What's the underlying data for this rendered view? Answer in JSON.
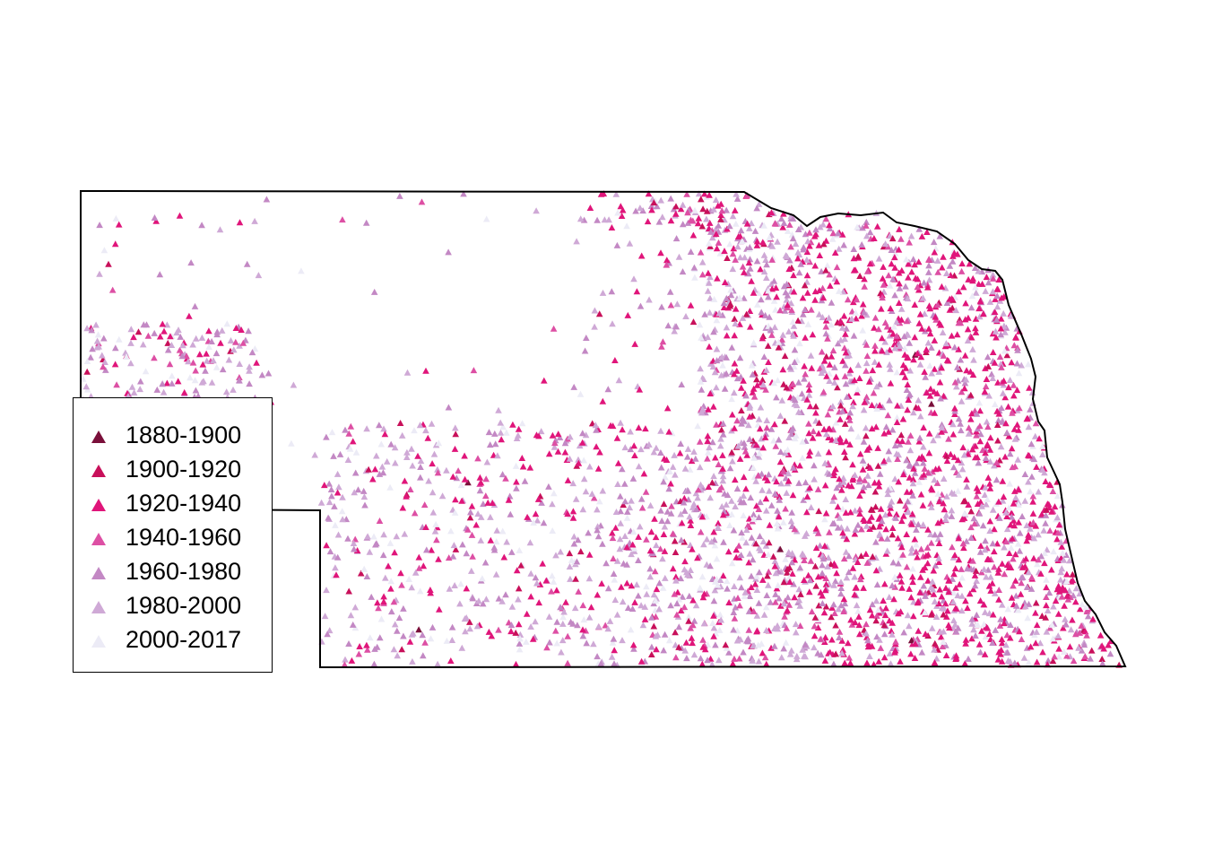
{
  "legend": {
    "items": [
      {
        "label": "1880-1900",
        "color": "#7a0f3a"
      },
      {
        "label": "1900-1920",
        "color": "#c8105a"
      },
      {
        "label": "1920-1940",
        "color": "#e0157a"
      },
      {
        "label": "1940-1960",
        "color": "#dd4fa4"
      },
      {
        "label": "1960-1980",
        "color": "#c388c4"
      },
      {
        "label": "1980-2000",
        "color": "#cfa9d6"
      },
      {
        "label": "2000-2017",
        "color": "#ecebf6"
      }
    ]
  },
  "map": {
    "region_shape": "nebraska-outline",
    "marker_shape": "triangle",
    "outline_color": "#000000"
  }
}
